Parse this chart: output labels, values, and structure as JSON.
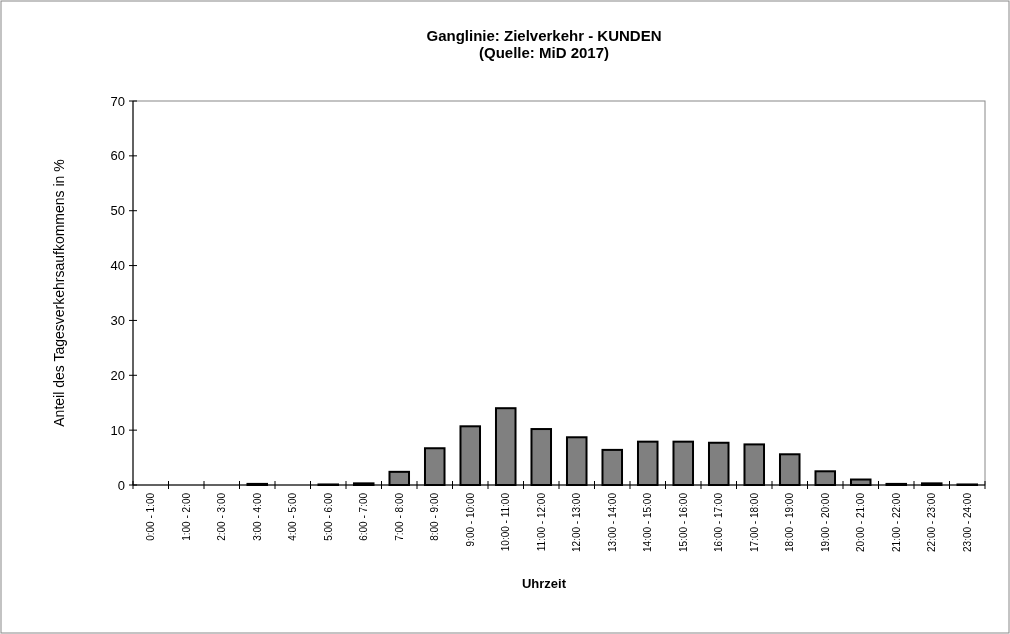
{
  "chart_data": {
    "type": "bar",
    "title": "Ganglinie: Zielverkehr - KUNDEN",
    "subtitle": "(Quelle: MiD 2017)",
    "xlabel": "Uhrzeit",
    "ylabel": "Anteil des Tagesverkehrsaufkommens in %",
    "categories": [
      "0:00 - 1:00",
      "1:00 - 2:00",
      "2:00 - 3:00",
      "3:00 - 4:00",
      "4:00 - 5:00",
      "5:00 - 6:00",
      "6:00 - 7:00",
      "7:00 - 8:00",
      "8:00 - 9:00",
      "9:00 - 10:00",
      "10:00 - 11:00",
      "11:00 - 12:00",
      "12:00 - 13:00",
      "13:00 - 14:00",
      "14:00 - 15:00",
      "15:00 - 16:00",
      "16:00 - 17:00",
      "17:00 - 18:00",
      "18:00 - 19:00",
      "19:00 - 20:00",
      "20:00 - 21:00",
      "21:00 - 22:00",
      "22:00 - 23:00",
      "23:00 - 24:00"
    ],
    "values": [
      0,
      0,
      0,
      0.2,
      0,
      0.1,
      0.3,
      2.4,
      6.7,
      10.7,
      14.0,
      10.2,
      8.7,
      6.4,
      7.9,
      7.9,
      7.7,
      7.4,
      5.6,
      2.5,
      1.0,
      0.2,
      0.3,
      0.1
    ],
    "color": "#808080",
    "ylim": [
      0,
      70
    ],
    "yticks": [
      0,
      10,
      20,
      30,
      40,
      50,
      60,
      70
    ],
    "grid": false
  }
}
